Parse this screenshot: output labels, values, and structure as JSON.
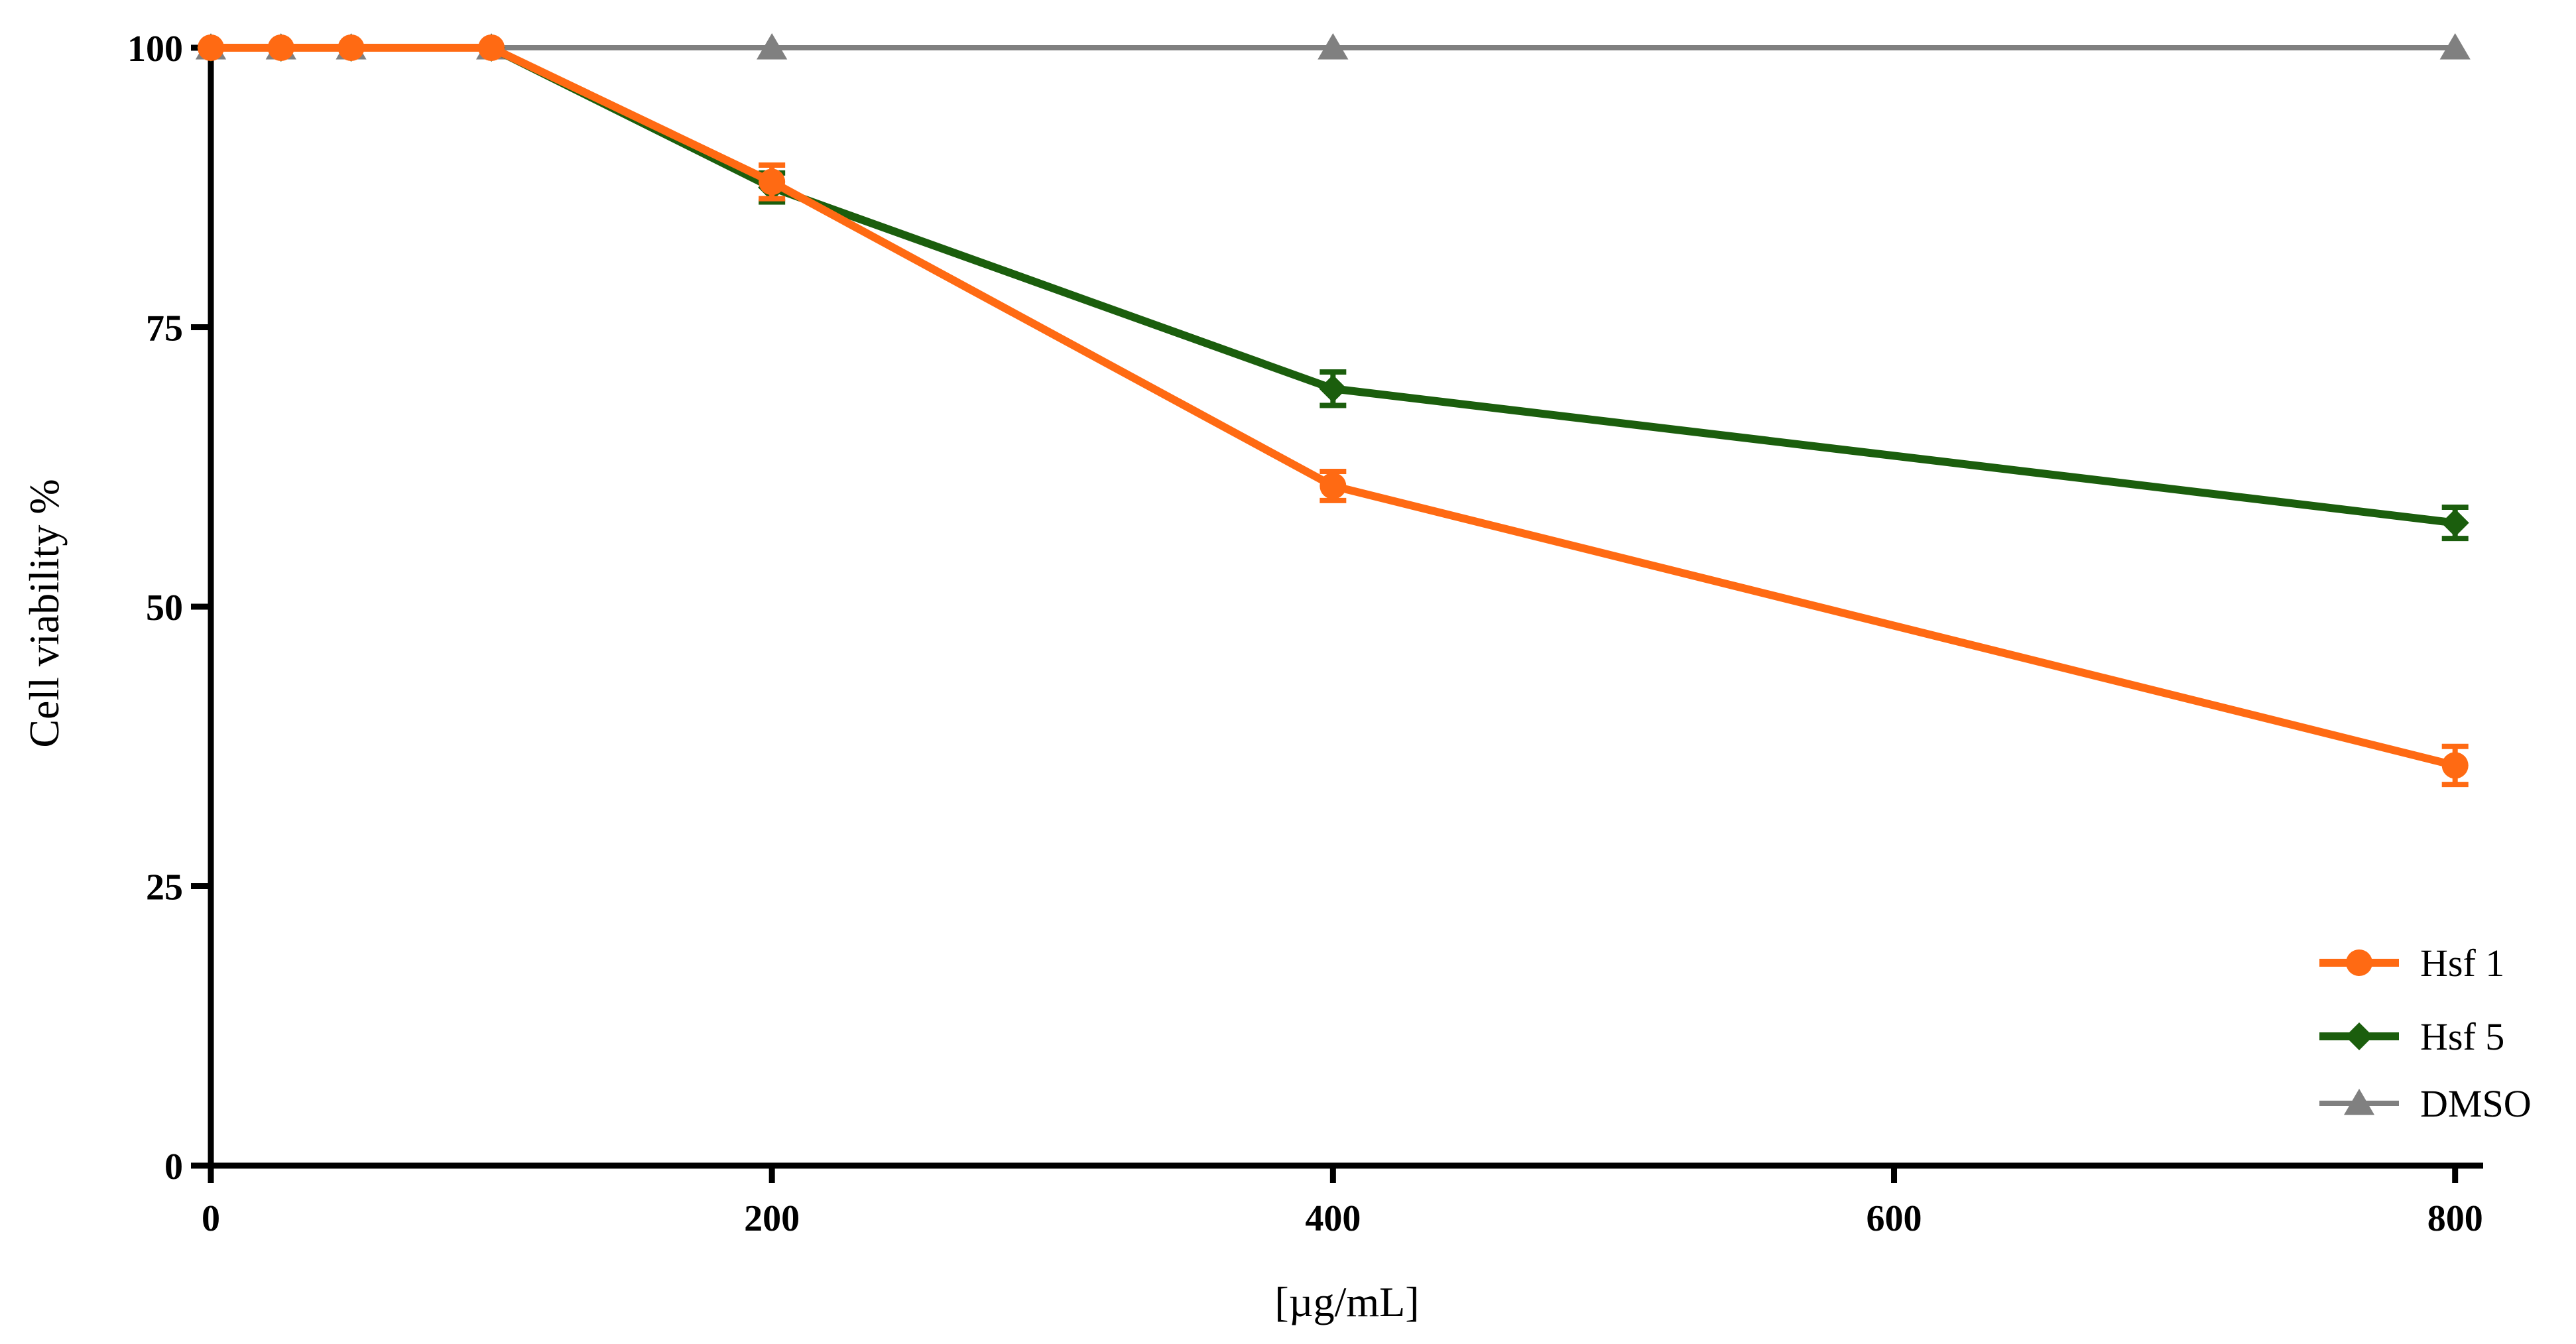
{
  "chart_data": {
    "type": "line",
    "xlabel": "[µg/mL]",
    "ylabel": "Cell viability %",
    "xlim": [
      0,
      810
    ],
    "ylim": [
      0,
      100
    ],
    "xticks": [
      0,
      200,
      400,
      600,
      800
    ],
    "yticks": [
      0,
      25,
      50,
      75,
      100
    ],
    "x_tick_labels": [
      "0",
      "200",
      "400",
      "600",
      "800"
    ],
    "y_tick_labels": [
      "0",
      "25",
      "50",
      "75",
      "100"
    ],
    "grid": false,
    "legend_position": "bottom-right",
    "series": [
      {
        "name": "Hsf 1",
        "color": "#FF6A13",
        "marker": "circle",
        "points": [
          {
            "x": 0,
            "y": 100,
            "err": 0
          },
          {
            "x": 25,
            "y": 100,
            "err": 0
          },
          {
            "x": 50,
            "y": 100,
            "err": 0
          },
          {
            "x": 100,
            "y": 100,
            "err": 0
          },
          {
            "x": 200,
            "y": 88,
            "err": 1.5
          },
          {
            "x": 400,
            "y": 60.8,
            "err": 1.3
          },
          {
            "x": 800,
            "y": 35.8,
            "err": 1.7
          }
        ]
      },
      {
        "name": "Hsf 5",
        "color": "#1B5E0D",
        "marker": "diamond",
        "points": [
          {
            "x": 0,
            "y": 100,
            "err": 0
          },
          {
            "x": 25,
            "y": 100,
            "err": 0
          },
          {
            "x": 50,
            "y": 100,
            "err": 0
          },
          {
            "x": 100,
            "y": 100,
            "err": 0
          },
          {
            "x": 200,
            "y": 87.5,
            "err": 1.3
          },
          {
            "x": 400,
            "y": 69.5,
            "err": 1.5
          },
          {
            "x": 800,
            "y": 57.5,
            "err": 1.4
          }
        ]
      },
      {
        "name": "DMSO",
        "color": "#808080",
        "marker": "triangle",
        "points": [
          {
            "x": 0,
            "y": 100,
            "err": 0
          },
          {
            "x": 25,
            "y": 100,
            "err": 0
          },
          {
            "x": 50,
            "y": 100,
            "err": 0
          },
          {
            "x": 100,
            "y": 100,
            "err": 0
          },
          {
            "x": 200,
            "y": 100,
            "err": 0
          },
          {
            "x": 400,
            "y": 100,
            "err": 0
          },
          {
            "x": 800,
            "y": 100,
            "err": 0
          }
        ]
      }
    ]
  }
}
